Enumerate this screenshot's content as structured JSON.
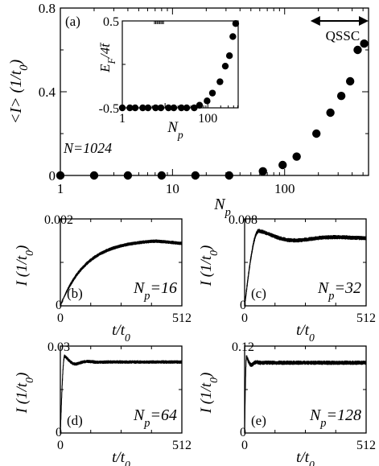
{
  "chart_data": [
    {
      "id": "a",
      "type": "scatter",
      "panel_label": "(a)",
      "xlabel": "N",
      "xlabel_sub": "p",
      "ylabel": "<I> (1/t",
      "ylabel_sub": "0",
      "ylabel_end": ")",
      "xscale": "log",
      "xlim": [
        1,
        560
      ],
      "ylim": [
        0,
        0.8
      ],
      "xticks": [
        1,
        10,
        100
      ],
      "yticks": [
        0,
        0.4,
        0.8
      ],
      "ytick_labels": [
        "0",
        "0.4",
        "0.8"
      ],
      "annotation": "N=1024",
      "range_annotation": {
        "label": "QSSC",
        "x_from": 170,
        "x_to": 560
      },
      "points": {
        "x": [
          1,
          2,
          4,
          8,
          16,
          32,
          64,
          96,
          128,
          192,
          256,
          320,
          384,
          448,
          512
        ],
        "y": [
          0,
          0,
          0,
          0,
          0,
          0,
          0.02,
          0.05,
          0.09,
          0.2,
          0.3,
          0.38,
          0.45,
          0.6,
          0.63
        ]
      }
    },
    {
      "id": "a-inset",
      "type": "scatter",
      "xlabel": "N",
      "xlabel_sub": "p",
      "ylabel": "E",
      "ylabel_sub": "F",
      "ylabel_end": "/4t̄",
      "xscale": "log",
      "xlim": [
        1,
        512
      ],
      "ylim": [
        -0.5,
        0.5
      ],
      "yticks": [
        -0.5,
        0.5
      ],
      "ytick_labels": [
        "-0.5",
        "0.5"
      ],
      "xticks": [
        1,
        100
      ],
      "points": {
        "x": [
          1,
          1.5,
          2,
          3,
          4,
          6,
          8,
          12,
          16,
          24,
          32,
          48,
          64,
          96,
          128,
          192,
          256,
          320,
          384,
          448
        ],
        "y": [
          -0.5,
          -0.5,
          -0.5,
          -0.5,
          -0.5,
          -0.5,
          -0.5,
          -0.5,
          -0.5,
          -0.5,
          -0.5,
          -0.5,
          -0.47,
          -0.42,
          -0.33,
          -0.2,
          -0.02,
          0.1,
          0.32,
          0.47
        ]
      }
    },
    {
      "id": "b",
      "type": "line",
      "panel_label": "(b)",
      "annotation": "N",
      "annotation_sub": "p",
      "annotation_end": "=16",
      "xlabel": "t/t",
      "xlabel_sub": "0",
      "ylabel": "I (1/t",
      "ylabel_sub": "0",
      "ylabel_end": ")",
      "xlim": [
        0,
        512
      ],
      "ylim": [
        0,
        0.002
      ],
      "xticks": [
        0,
        512
      ],
      "yticks": [
        0,
        0.002
      ],
      "ytick_labels": [
        "0",
        "0.002"
      ],
      "curve": {
        "model": "rise",
        "peak": 0.00153,
        "final": 0.00145,
        "peak_t": 400,
        "noise": 4e-05
      }
    },
    {
      "id": "c",
      "type": "line",
      "panel_label": "(c)",
      "annotation": "N",
      "annotation_sub": "p",
      "annotation_end": "=32",
      "xlabel": "t/t",
      "xlabel_sub": "0",
      "ylabel": "I (1/t",
      "ylabel_sub": "0",
      "ylabel_end": ")",
      "xlim": [
        0,
        512
      ],
      "ylim": [
        0,
        0.008
      ],
      "xticks": [
        0,
        512
      ],
      "yticks": [
        0,
        0.008
      ],
      "ytick_labels": [
        "0",
        "0.008"
      ],
      "curve": {
        "model": "damped",
        "peak": 0.0069,
        "final": 0.00625,
        "peak_t": 60,
        "noise": 0.0002
      }
    },
    {
      "id": "d",
      "type": "line",
      "panel_label": "(d)",
      "annotation": "N",
      "annotation_sub": "p",
      "annotation_end": "=64",
      "xlabel": "t/t",
      "xlabel_sub": "0",
      "ylabel": "I (1/t",
      "ylabel_sub": "0",
      "ylabel_end": ")",
      "xlim": [
        0,
        512
      ],
      "ylim": [
        0,
        0.03
      ],
      "xticks": [
        0,
        512
      ],
      "yticks": [
        0,
        0.03
      ],
      "ytick_labels": [
        "0",
        "0.03"
      ],
      "curve": {
        "model": "damped",
        "peak": 0.0265,
        "final": 0.0245,
        "peak_t": 18,
        "noise": 0.0006
      }
    },
    {
      "id": "e",
      "type": "line",
      "panel_label": "(e)",
      "annotation": "N",
      "annotation_sub": "p",
      "annotation_end": "=128",
      "xlabel": "t/t",
      "xlabel_sub": "0",
      "ylabel": "I (1/t",
      "ylabel_sub": "0",
      "ylabel_end": ")",
      "xlim": [
        0,
        512
      ],
      "ylim": [
        0,
        0.12
      ],
      "xticks": [
        0,
        512
      ],
      "yticks": [
        0,
        0.12
      ],
      "ytick_labels": [
        "0",
        "0.12"
      ],
      "curve": {
        "model": "damped",
        "peak": 0.105,
        "final": 0.097,
        "peak_t": 8,
        "noise": 0.003
      }
    }
  ]
}
